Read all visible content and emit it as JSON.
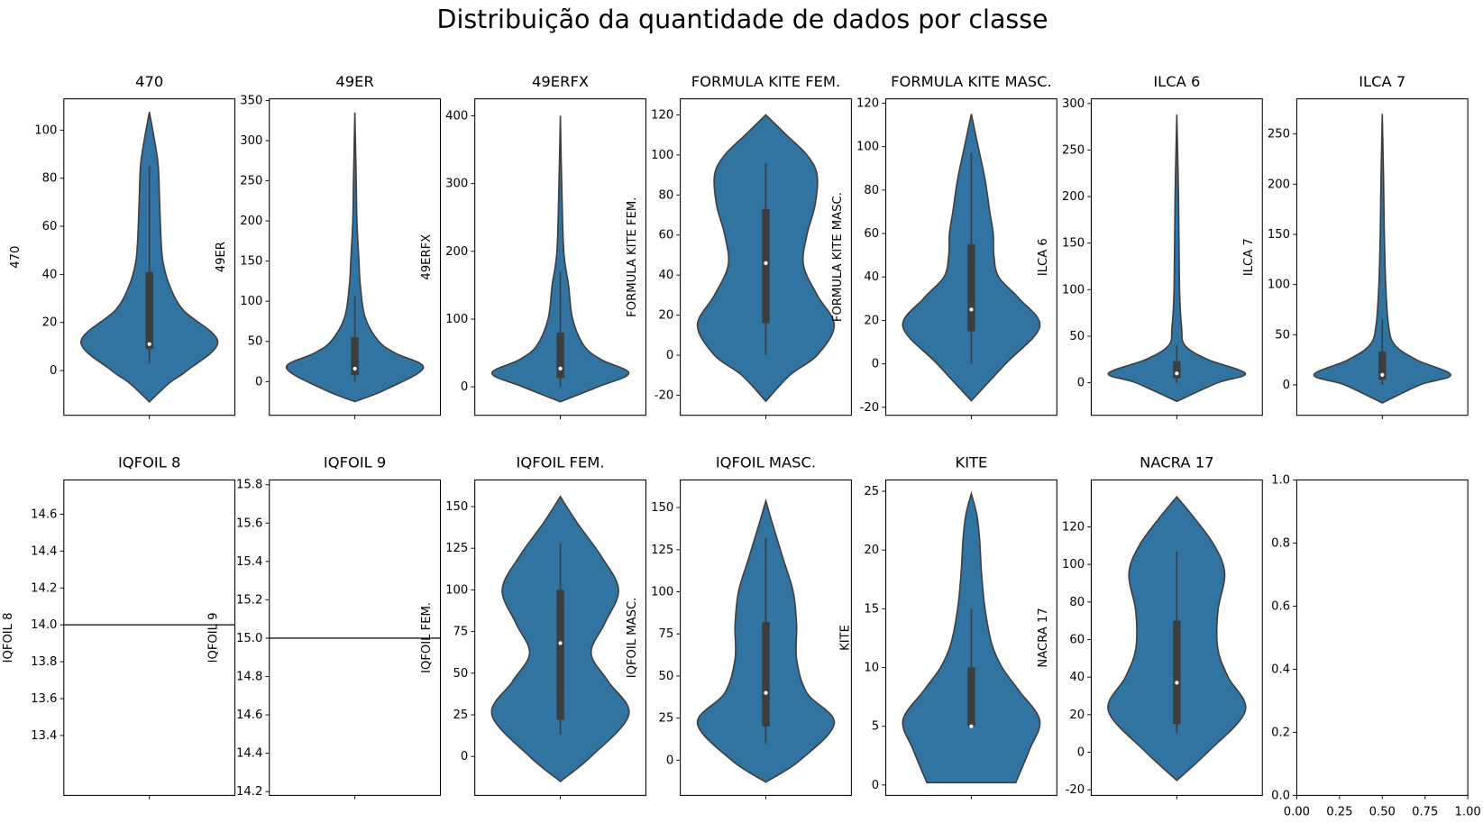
{
  "title": "Distribuição da quantidade de dados por classe",
  "chart_data": [
    {
      "type": "violin",
      "title": "470",
      "ylabel": "470",
      "color": "#3274a1",
      "ylim": [
        -18.6,
        113
      ],
      "yticks": [
        0,
        20,
        40,
        60,
        80,
        100
      ],
      "density_y": [
        -13,
        -5,
        0,
        12,
        25,
        35,
        45,
        55,
        70,
        85,
        95,
        107.5
      ],
      "density_w": [
        0,
        0.3,
        0.55,
        1.0,
        0.5,
        0.3,
        0.2,
        0.17,
        0.15,
        0.13,
        0.08,
        0
      ],
      "box": [
        9,
        41
      ],
      "whiskers": [
        3,
        85
      ],
      "median": 11
    },
    {
      "type": "violin",
      "title": "49ER",
      "ylabel": "49ER",
      "color": "#3274a1",
      "ylim": [
        -42,
        352
      ],
      "yticks": [
        0,
        50,
        100,
        150,
        200,
        250,
        300,
        350
      ],
      "density_y": [
        -25,
        -10,
        17,
        35,
        50,
        80,
        120,
        150,
        200,
        250,
        335
      ],
      "density_w": [
        0,
        0.45,
        1.0,
        0.6,
        0.35,
        0.15,
        0.08,
        0.06,
        0.03,
        0.02,
        0
      ],
      "box": [
        8,
        55
      ],
      "whiskers": [
        0,
        107
      ],
      "median": 16
    },
    {
      "type": "violin",
      "title": "49ERFX",
      "ylabel": "49ERFX",
      "color": "#3274a1",
      "ylim": [
        -42,
        425
      ],
      "yticks": [
        0,
        100,
        200,
        300,
        400
      ],
      "density_y": [
        -22,
        0,
        20,
        40,
        60,
        100,
        150,
        200,
        300,
        400
      ],
      "density_w": [
        0,
        0.55,
        1.0,
        0.6,
        0.35,
        0.18,
        0.12,
        0.05,
        0.02,
        0
      ],
      "box": [
        13,
        80
      ],
      "whiskers": [
        0,
        170
      ],
      "median": 27
    },
    {
      "type": "violin",
      "title": "FORMULA KITE FEM.",
      "ylabel": "FORMULA KITE FEM.",
      "color": "#3274a1",
      "ylim": [
        -30,
        128
      ],
      "yticks": [
        -20,
        0,
        20,
        40,
        60,
        80,
        100,
        120
      ],
      "density_y": [
        -23,
        -10,
        0,
        15,
        30,
        45,
        60,
        75,
        90,
        100,
        110,
        120
      ],
      "density_w": [
        0,
        0.35,
        0.75,
        1.0,
        0.75,
        0.55,
        0.6,
        0.72,
        0.75,
        0.6,
        0.3,
        0
      ],
      "box": [
        16,
        73
      ],
      "whiskers": [
        0,
        96
      ],
      "median": 46
    },
    {
      "type": "violin",
      "title": "FORMULA KITE MASC.",
      "ylabel": "FORMULA KITE MASC.",
      "color": "#3274a1",
      "ylim": [
        -23.7,
        122
      ],
      "yticks": [
        -20,
        0,
        20,
        40,
        60,
        80,
        100,
        120
      ],
      "density_y": [
        -17,
        0,
        17,
        30,
        40,
        50,
        60,
        70,
        85,
        100,
        115
      ],
      "density_w": [
        0,
        0.5,
        1.0,
        0.7,
        0.4,
        0.33,
        0.32,
        0.27,
        0.2,
        0.1,
        0
      ],
      "box": [
        15,
        55
      ],
      "whiskers": [
        0,
        97
      ],
      "median": 25
    },
    {
      "type": "violin",
      "title": "ILCA 6",
      "ylabel": "ILCA 6",
      "color": "#3274a1",
      "ylim": [
        -35,
        305
      ],
      "yticks": [
        0,
        50,
        100,
        150,
        200,
        250,
        300
      ],
      "density_y": [
        -20,
        0,
        10,
        25,
        40,
        60,
        100,
        200,
        288
      ],
      "density_w": [
        0,
        0.6,
        1.0,
        0.45,
        0.12,
        0.07,
        0.04,
        0.025,
        0
      ],
      "box": [
        5,
        23
      ],
      "whiskers": [
        0,
        40
      ],
      "median": 10
    },
    {
      "type": "violin",
      "title": "ILCA 7",
      "ylabel": "ILCA 7",
      "color": "#3274a1",
      "ylim": [
        -30.3,
        285
      ],
      "yticks": [
        0,
        50,
        100,
        150,
        200,
        250
      ],
      "density_y": [
        -18,
        0,
        10,
        25,
        40,
        60,
        100,
        150,
        200,
        270
      ],
      "density_w": [
        0,
        0.55,
        1.0,
        0.5,
        0.18,
        0.09,
        0.05,
        0.03,
        0.02,
        0
      ],
      "box": [
        5,
        33
      ],
      "whiskers": [
        0,
        65
      ],
      "median": 10
    },
    {
      "type": "violin",
      "title": "IQFOIL 8",
      "ylabel": "IQFOIL 8",
      "color": "#3274a1",
      "ylim": [
        13.075,
        14.786
      ],
      "yticks": [
        13.4,
        13.6,
        13.8,
        {
          "value": 14,
          "label": "14.0"
        },
        14.2,
        14.4,
        14.6
      ],
      "median": 14
    },
    {
      "type": "violin",
      "title": "IQFOIL 9",
      "ylabel": "IQFOIL 9",
      "color": "#3274a1",
      "ylim": [
        14.18,
        15.825
      ],
      "yticks": [
        14.2,
        14.4,
        14.6,
        14.8,
        {
          "value": 15,
          "label": "15.0"
        },
        15.2,
        15.4,
        15.6,
        15.8
      ],
      "median": 15
    },
    {
      "type": "violin",
      "title": "IQFOIL FEM.",
      "ylabel": "IQFOIL FEM.",
      "color": "#3274a1",
      "ylim": [
        -23.4,
        166
      ],
      "yticks": [
        0,
        25,
        50,
        75,
        100,
        125,
        150
      ],
      "density_y": [
        -15,
        0,
        25,
        45,
        62,
        80,
        100,
        120,
        140,
        156
      ],
      "density_w": [
        0,
        0.45,
        1.0,
        0.7,
        0.45,
        0.65,
        0.85,
        0.6,
        0.25,
        0
      ],
      "box": [
        22,
        100
      ],
      "whiskers": [
        13,
        128
      ],
      "median": 68
    },
    {
      "type": "violin",
      "title": "IQFOIL MASC.",
      "ylabel": "IQFOIL MASC.",
      "color": "#3274a1",
      "ylim": [
        -20.9,
        166.4
      ],
      "yticks": [
        0,
        25,
        50,
        75,
        100,
        125,
        150
      ],
      "density_y": [
        -13,
        0,
        22,
        40,
        60,
        80,
        100,
        120,
        140,
        154
      ],
      "density_w": [
        0,
        0.5,
        1.0,
        0.6,
        0.45,
        0.45,
        0.4,
        0.25,
        0.1,
        0
      ],
      "box": [
        20,
        82
      ],
      "whiskers": [
        10,
        132
      ],
      "median": 40
    },
    {
      "type": "violin",
      "title": "KITE",
      "ylabel": "KITE",
      "color": "#3274a1",
      "ylim": [
        -0.89,
        25.97
      ],
      "yticks": [
        0,
        5,
        10,
        15,
        20,
        25
      ],
      "density_y": [
        0.2,
        3,
        5.5,
        8,
        10,
        12,
        15,
        18,
        21,
        23,
        24.8
      ],
      "density_w": [
        0.65,
        0.85,
        1.0,
        0.7,
        0.45,
        0.3,
        0.2,
        0.15,
        0.12,
        0.08,
        0
      ],
      "box": [
        5,
        10
      ],
      "whiskers": [
        5,
        15
      ],
      "median": 5
    },
    {
      "type": "violin",
      "title": "NACRA 17",
      "ylabel": "NACRA 17",
      "color": "#3274a1",
      "ylim": [
        -23,
        145
      ],
      "yticks": [
        -20,
        0,
        20,
        40,
        60,
        80,
        100,
        120
      ],
      "density_y": [
        -15,
        0,
        22,
        40,
        55,
        75,
        95,
        110,
        125,
        136
      ],
      "density_w": [
        0,
        0.45,
        1.0,
        0.75,
        0.6,
        0.6,
        0.7,
        0.55,
        0.25,
        0
      ],
      "box": [
        15,
        70
      ],
      "whiskers": [
        10,
        107
      ],
      "median": 37
    },
    {
      "type": "empty",
      "xlim": [
        0,
        1
      ],
      "ylim": [
        0,
        1
      ],
      "xticks": [
        {
          "value": 0,
          "label": "0.00"
        },
        {
          "value": 0.25,
          "label": "0.25"
        },
        {
          "value": 0.5,
          "label": "0.50"
        },
        {
          "value": 0.75,
          "label": "0.75"
        },
        {
          "value": 1,
          "label": "1.00"
        }
      ],
      "yticks": [
        {
          "value": 0,
          "label": "0.0"
        },
        {
          "value": 0.2,
          "label": "0.2"
        },
        {
          "value": 0.4,
          "label": "0.4"
        },
        {
          "value": 0.6,
          "label": "0.6"
        },
        {
          "value": 0.8,
          "label": "0.8"
        },
        {
          "value": 1,
          "label": "1.0"
        }
      ]
    }
  ]
}
